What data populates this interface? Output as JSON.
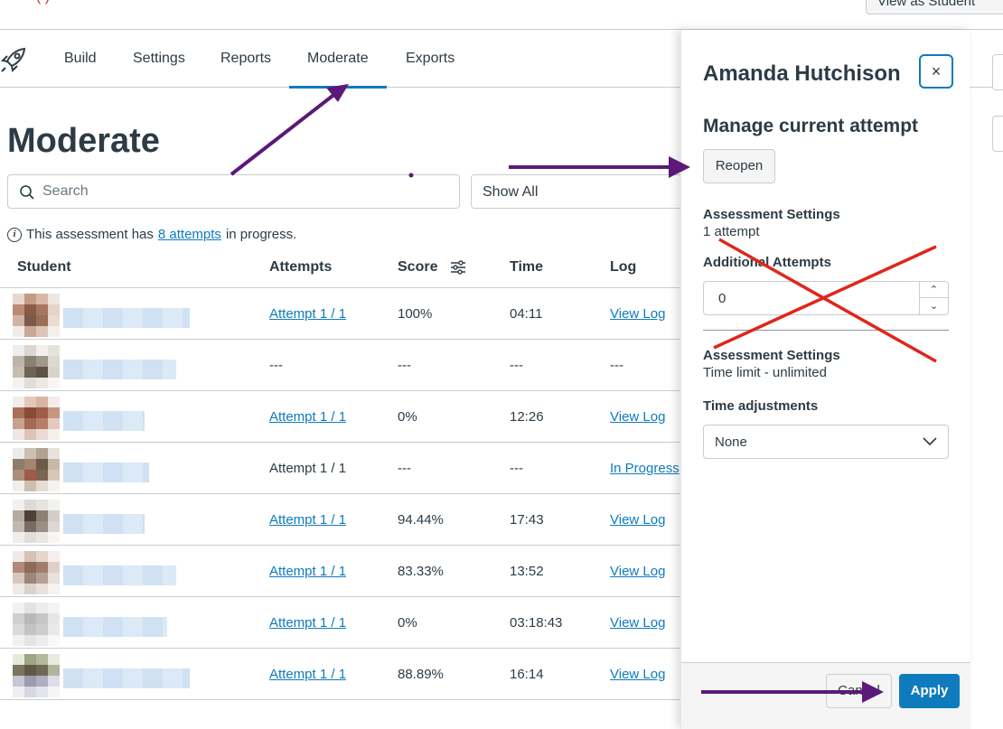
{
  "top_bar": {
    "red_text": "(                 )",
    "view_as_label": "View as Student"
  },
  "nav": {
    "logo_icon": "rocket-icon",
    "tabs": [
      {
        "label": "Build",
        "active": false
      },
      {
        "label": "Settings",
        "active": false
      },
      {
        "label": "Reports",
        "active": false
      },
      {
        "label": "Moderate",
        "active": true
      },
      {
        "label": "Exports",
        "active": false
      }
    ]
  },
  "page": {
    "title": "Moderate",
    "search_placeholder": "Search",
    "filter_value": "Show All",
    "info": {
      "prefix": "This assessment has ",
      "link": "8 attempts",
      "suffix": " in progress."
    }
  },
  "table": {
    "columns": [
      "Student",
      "Attempts",
      "Score",
      "Time",
      "Log"
    ],
    "rows": [
      {
        "attempt": "Attempt 1 / 1",
        "attempt_link": true,
        "score": "100%",
        "time": "04:11",
        "log": "View Log",
        "log_link": true
      },
      {
        "attempt": "---",
        "attempt_link": false,
        "score": "---",
        "time": "---",
        "log": "---",
        "log_link": false
      },
      {
        "attempt": "Attempt 1 / 1",
        "attempt_link": true,
        "score": "0%",
        "time": "12:26",
        "log": "View Log",
        "log_link": true
      },
      {
        "attempt": "Attempt 1 / 1",
        "attempt_link": false,
        "score": "---",
        "time": "---",
        "log": "In Progress",
        "log_link": true
      },
      {
        "attempt": "Attempt 1 / 1",
        "attempt_link": true,
        "score": "94.44%",
        "time": "17:43",
        "log": "View Log",
        "log_link": true
      },
      {
        "attempt": "Attempt 1 / 1",
        "attempt_link": true,
        "score": "83.33%",
        "time": "13:52",
        "log": "View Log",
        "log_link": true
      },
      {
        "attempt": "Attempt 1 / 1",
        "attempt_link": true,
        "score": "0%",
        "time": "03:18:43",
        "log": "View Log",
        "log_link": true
      },
      {
        "attempt": "Attempt 1 / 1",
        "attempt_link": true,
        "score": "88.89%",
        "time": "16:14",
        "log": "View Log",
        "log_link": true
      }
    ]
  },
  "panel": {
    "student_name": "Amanda Hutchison",
    "close_label": "×",
    "subtitle": "Manage current attempt",
    "reopen_label": "Reopen",
    "settings1_label": "Assessment Settings",
    "settings1_value": "1 attempt",
    "additional_label": "Additional Attempts",
    "additional_value": "0",
    "settings2_label": "Assessment Settings",
    "settings2_value": "Time limit - unlimited",
    "time_adj_label": "Time adjustments",
    "time_adj_value": "None",
    "cancel_label": "Cancel",
    "apply_label": "Apply"
  },
  "colors": {
    "accent": "#0e7bbd",
    "annotation_arrow": "#5b1a7a",
    "annotation_cross": "#e0261b"
  }
}
